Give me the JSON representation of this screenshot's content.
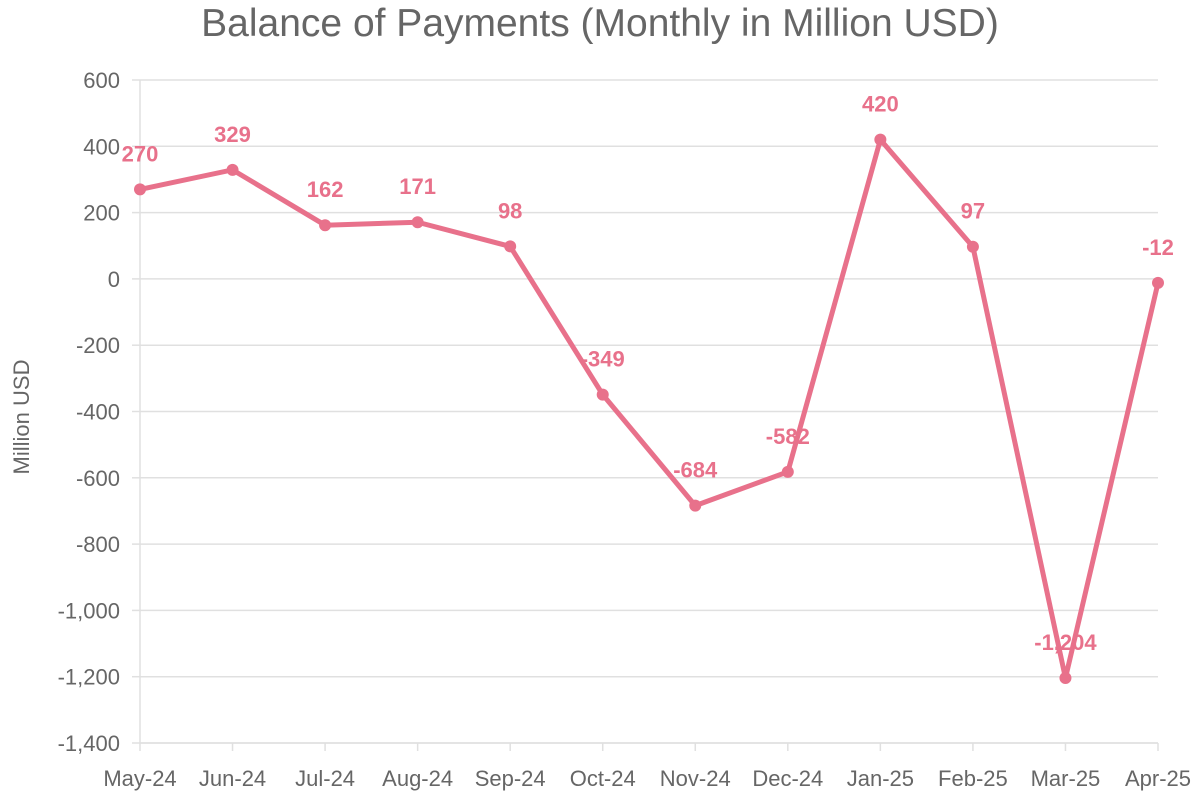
{
  "chart_data": {
    "type": "line",
    "title": "Balance of Payments (Monthly in Million USD)",
    "ylabel": "Million USD",
    "xlabel": "",
    "categories": [
      "May-24",
      "Jun-24",
      "Jul-24",
      "Aug-24",
      "Sep-24",
      "Oct-24",
      "Nov-24",
      "Dec-24",
      "Jan-25",
      "Feb-25",
      "Mar-25",
      "Apr-25"
    ],
    "series": [
      {
        "values": [
          270,
          329,
          162,
          171,
          98,
          -349,
          -684,
          -582,
          420,
          97,
          -1204,
          -12
        ]
      }
    ],
    "data_labels": [
      "270",
      "329",
      "162",
      "171",
      "98",
      "-349",
      "-684",
      "-582",
      "420",
      "97",
      "-1,204",
      "-12"
    ],
    "ylim": [
      -1400,
      600
    ],
    "y_ticks": [
      600,
      400,
      200,
      0,
      -200,
      -400,
      -600,
      -800,
      -1000,
      -1200,
      -1400
    ],
    "y_tick_labels": [
      "600",
      "400",
      "200",
      "0",
      "-200",
      "-400",
      "-600",
      "-800",
      "-1,000",
      "-1,200",
      "-1,400"
    ],
    "grid": true,
    "legend": "none",
    "line_color": "#e8718b",
    "grid_color": "#e0e0e0",
    "text_color": "#666666"
  }
}
